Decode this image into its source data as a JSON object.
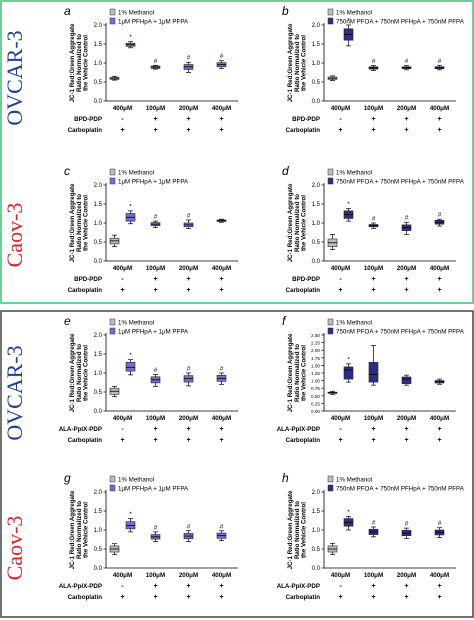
{
  "colors": {
    "top_border": "#3cc173",
    "bottom_border": "#444444",
    "ovcar_text": "#1f3e96",
    "caov_text": "#d9262b",
    "methanol_box": "#bdbdbd",
    "pfhpa_box": "#6f6fd6",
    "pfoa_box": "#2e2d86"
  },
  "groups": [
    {
      "label": "OVCAR-3",
      "color_key": "ovcar_text"
    },
    {
      "label": "Caov-3",
      "color_key": "caov_text"
    },
    {
      "label": "OVCAR-3",
      "color_key": "ovcar_text"
    },
    {
      "label": "Caov-3",
      "color_key": "caov_text"
    }
  ],
  "chart_data": [
    {
      "panel": "a",
      "type": "box",
      "ylabel": "JC-1 Red:Green Aggregate Ratio Normalized to the Vehicle Control",
      "ylim": [
        0,
        2
      ],
      "yticks": [
        "0.0",
        "0.5",
        "1.0",
        "1.5",
        "2.0"
      ],
      "legend": [
        "1% Methanol",
        "1μM PFHpA + 1μM PFPA"
      ],
      "legend_position": "top-left",
      "categories": [
        "400μM",
        "100μM",
        "200μM",
        "400μM"
      ],
      "treatment_rows": [
        {
          "label": "BPD-PDP",
          "marks": [
            "-",
            "+",
            "+",
            "+"
          ]
        },
        {
          "label": "Carboplatin",
          "marks": [
            "+",
            "+",
            "+",
            "+"
          ]
        }
      ],
      "boxes": [
        {
          "series": 0,
          "min": 0.55,
          "q1": 0.57,
          "median": 0.6,
          "q3": 0.62,
          "max": 0.65
        },
        {
          "series": 1,
          "min": 1.4,
          "q1": 1.44,
          "median": 1.48,
          "q3": 1.52,
          "max": 1.56,
          "marker": "*"
        },
        {
          "series": 1,
          "min": 0.84,
          "q1": 0.86,
          "median": 0.89,
          "q3": 0.92,
          "max": 0.94,
          "marker": "#"
        },
        {
          "series": 1,
          "min": 0.75,
          "q1": 0.83,
          "median": 0.9,
          "q3": 0.96,
          "max": 1.02,
          "marker": "#"
        },
        {
          "series": 1,
          "min": 0.86,
          "q1": 0.9,
          "median": 0.96,
          "q3": 1.01,
          "max": 1.06,
          "marker": "#"
        }
      ]
    },
    {
      "panel": "b",
      "type": "box",
      "ylabel": "JC-1 Red:Green Aggregate Ratio Normalized to the Vehicle Control",
      "ylim": [
        0,
        2
      ],
      "yticks": [
        "0.0",
        "0.5",
        "1.0",
        "1.5",
        "2.0"
      ],
      "legend": [
        "1% Methanol",
        "750nM PFOA + 750nM PFHpA + 750nM PFPA"
      ],
      "legend_position": "top-left",
      "categories": [
        "400μM",
        "100μM",
        "200μM",
        "400μM"
      ],
      "treatment_rows": [
        {
          "label": "BPD-PDP",
          "marks": [
            "-",
            "+",
            "+",
            "+"
          ]
        },
        {
          "label": "Carboplatin",
          "marks": [
            "+",
            "+",
            "+",
            "+"
          ]
        }
      ],
      "boxes": [
        {
          "series": 0,
          "min": 0.54,
          "q1": 0.57,
          "median": 0.6,
          "q3": 0.63,
          "max": 0.66
        },
        {
          "series": 2,
          "min": 1.45,
          "q1": 1.6,
          "median": 1.75,
          "q3": 1.9,
          "max": 2.0,
          "marker": "*"
        },
        {
          "series": 2,
          "min": 0.8,
          "q1": 0.84,
          "median": 0.87,
          "q3": 0.9,
          "max": 0.93,
          "marker": "#"
        },
        {
          "series": 2,
          "min": 0.82,
          "q1": 0.85,
          "median": 0.88,
          "q3": 0.9,
          "max": 0.93,
          "marker": "#"
        },
        {
          "series": 2,
          "min": 0.82,
          "q1": 0.85,
          "median": 0.88,
          "q3": 0.9,
          "max": 0.94,
          "marker": "#"
        }
      ]
    },
    {
      "panel": "c",
      "type": "box",
      "ylabel": "JC-1 Red:Green Aggregate Ratio Normalized to the Vehicle Control",
      "ylim": [
        0,
        2
      ],
      "yticks": [
        "0.0",
        "0.5",
        "1.0",
        "1.5",
        "2.0"
      ],
      "legend": [
        "1% Methanol",
        "1μM PFHpA + 1μM PFPA"
      ],
      "legend_position": "top-left",
      "categories": [
        "400μM",
        "100μM",
        "200μM",
        "400μM"
      ],
      "treatment_rows": [
        {
          "label": "BPD-PDP",
          "marks": [
            "-",
            "+",
            "+",
            "+"
          ]
        },
        {
          "label": "Carboplatin",
          "marks": [
            "+",
            "+",
            "+",
            "+"
          ]
        }
      ],
      "boxes": [
        {
          "series": 0,
          "min": 0.38,
          "q1": 0.45,
          "median": 0.53,
          "q3": 0.6,
          "max": 0.68
        },
        {
          "series": 1,
          "min": 0.98,
          "q1": 1.05,
          "median": 1.15,
          "q3": 1.25,
          "max": 1.32,
          "marker": "*"
        },
        {
          "series": 1,
          "min": 0.88,
          "q1": 0.93,
          "median": 0.97,
          "q3": 1.01,
          "max": 1.05,
          "marker": "#"
        },
        {
          "series": 1,
          "min": 0.85,
          "q1": 0.9,
          "median": 0.95,
          "q3": 1.0,
          "max": 1.08,
          "marker": "#"
        },
        {
          "series": 1,
          "min": 1.02,
          "q1": 1.04,
          "median": 1.06,
          "q3": 1.08,
          "max": 1.1
        }
      ]
    },
    {
      "panel": "d",
      "type": "box",
      "ylabel": "JC-1 Red:Green Aggregate Ratio Normalized to the Vehicle Control",
      "ylim": [
        0,
        2
      ],
      "yticks": [
        "0.0",
        "0.5",
        "1.0",
        "1.5",
        "2.0"
      ],
      "legend": [
        "1% Methanol",
        "750nM PFOA + 750nM PFHpA + 750nM PFPA"
      ],
      "legend_position": "top-left",
      "categories": [
        "400μM",
        "100μM",
        "200μM",
        "400μM"
      ],
      "treatment_rows": [
        {
          "label": "BPD-PDP",
          "marks": [
            "-",
            "+",
            "+",
            "+"
          ]
        },
        {
          "label": "Carboplatin",
          "marks": [
            "+",
            "+",
            "+",
            "+"
          ]
        }
      ],
      "boxes": [
        {
          "series": 0,
          "min": 0.3,
          "q1": 0.38,
          "median": 0.48,
          "q3": 0.58,
          "max": 0.7
        },
        {
          "series": 2,
          "min": 1.05,
          "q1": 1.12,
          "median": 1.22,
          "q3": 1.32,
          "max": 1.38,
          "marker": "*"
        },
        {
          "series": 2,
          "min": 0.86,
          "q1": 0.9,
          "median": 0.93,
          "q3": 0.96,
          "max": 1.0,
          "marker": "#"
        },
        {
          "series": 2,
          "min": 0.7,
          "q1": 0.8,
          "median": 0.88,
          "q3": 0.95,
          "max": 1.02,
          "marker": "#"
        },
        {
          "series": 2,
          "min": 0.92,
          "q1": 0.97,
          "median": 1.02,
          "q3": 1.07,
          "max": 1.1,
          "marker": "#"
        }
      ]
    },
    {
      "panel": "e",
      "type": "box",
      "ylabel": "JC-1 Red:Green Aggregate Ratio Normalized to the Vehicle Control",
      "ylim": [
        0,
        2
      ],
      "yticks": [
        "0.0",
        "0.5",
        "1.0",
        "1.5",
        "2.0"
      ],
      "legend": [
        "1% Methanol",
        "1μM PFHpA + 1μM PFPA"
      ],
      "legend_position": "top-left",
      "categories": [
        "400μM",
        "100μM",
        "200μM",
        "400μM"
      ],
      "treatment_rows": [
        {
          "label": "ALA-PpIX-PDP",
          "marks": [
            "-",
            "+",
            "+",
            "+"
          ]
        },
        {
          "label": "Carboplatin",
          "marks": [
            "+",
            "+",
            "+",
            "+"
          ]
        }
      ],
      "boxes": [
        {
          "series": 0,
          "min": 0.38,
          "q1": 0.44,
          "median": 0.52,
          "q3": 0.6,
          "max": 0.65
        },
        {
          "series": 1,
          "min": 0.95,
          "q1": 1.05,
          "median": 1.15,
          "q3": 1.28,
          "max": 1.35,
          "marker": "*"
        },
        {
          "series": 1,
          "min": 0.65,
          "q1": 0.74,
          "median": 0.82,
          "q3": 0.9,
          "max": 0.96,
          "marker": "#"
        },
        {
          "series": 1,
          "min": 0.66,
          "q1": 0.76,
          "median": 0.85,
          "q3": 0.93,
          "max": 1.0,
          "marker": "#"
        },
        {
          "series": 1,
          "min": 0.7,
          "q1": 0.78,
          "median": 0.86,
          "q3": 0.94,
          "max": 1.0,
          "marker": "#"
        }
      ]
    },
    {
      "panel": "f",
      "type": "box",
      "ylabel": "JC-1 Red:Green Aggregate Ratio Normalized to the Vehicle Control",
      "ylim": [
        0,
        2.5
      ],
      "yticks": [
        "0.00",
        "0.25",
        "0.50",
        "0.75",
        "1.00",
        "1.25",
        "1.50",
        "1.75",
        "2.00",
        "2.25",
        "2.50"
      ],
      "legend": [
        "1% Methanol",
        "750nM PFOA + 750nM PFHpA + 750nM PFPA"
      ],
      "legend_position": "top-left",
      "categories": [
        "400μM",
        "100μM",
        "200μM",
        "400μM"
      ],
      "treatment_rows": [
        {
          "label": "ALA-PpIX-PDP",
          "marks": [
            "-",
            "+",
            "+",
            "+"
          ]
        },
        {
          "label": "Carboplatin",
          "marks": [
            "+",
            "+",
            "+",
            "+"
          ]
        }
      ],
      "boxes": [
        {
          "series": 0,
          "min": 0.55,
          "q1": 0.58,
          "median": 0.6,
          "q3": 0.62,
          "max": 0.65
        },
        {
          "series": 2,
          "min": 0.95,
          "q1": 1.05,
          "median": 1.35,
          "q3": 1.45,
          "max": 1.55,
          "marker": "*"
        },
        {
          "series": 2,
          "min": 0.85,
          "q1": 0.95,
          "median": 1.2,
          "q3": 1.6,
          "max": 2.15
        },
        {
          "series": 2,
          "min": 0.85,
          "q1": 0.9,
          "median": 1.05,
          "q3": 1.12,
          "max": 1.18
        },
        {
          "series": 2,
          "min": 0.88,
          "q1": 0.92,
          "median": 0.97,
          "q3": 1.0,
          "max": 1.05
        }
      ]
    },
    {
      "panel": "g",
      "type": "box",
      "ylabel": "JC-1 Red:Green Aggregate Ratio Normalized to the Vehicle Control",
      "ylim": [
        0,
        2
      ],
      "yticks": [
        "0.0",
        "0.5",
        "1.0",
        "1.5",
        "2.0"
      ],
      "legend": [
        "1% Methanol",
        "1μM PFHpA + 1μM PFPA"
      ],
      "legend_position": "top-left",
      "categories": [
        "400μM",
        "100μM",
        "200μM",
        "400μM"
      ],
      "treatment_rows": [
        {
          "label": "ALA-PpIX-PDP",
          "marks": [
            "-",
            "+",
            "+",
            "+"
          ]
        },
        {
          "label": "Carboplatin",
          "marks": [
            "+",
            "+",
            "+",
            "+"
          ]
        }
      ],
      "boxes": [
        {
          "series": 0,
          "min": 0.35,
          "q1": 0.42,
          "median": 0.5,
          "q3": 0.58,
          "max": 0.64
        },
        {
          "series": 1,
          "min": 0.95,
          "q1": 1.03,
          "median": 1.12,
          "q3": 1.22,
          "max": 1.3,
          "marker": "*"
        },
        {
          "series": 1,
          "min": 0.7,
          "q1": 0.76,
          "median": 0.82,
          "q3": 0.88,
          "max": 0.95,
          "marker": "#"
        },
        {
          "series": 1,
          "min": 0.7,
          "q1": 0.77,
          "median": 0.84,
          "q3": 0.91,
          "max": 0.98,
          "marker": "#"
        },
        {
          "series": 1,
          "min": 0.72,
          "q1": 0.78,
          "median": 0.85,
          "q3": 0.92,
          "max": 0.98,
          "marker": "#"
        }
      ]
    },
    {
      "panel": "h",
      "type": "box",
      "ylabel": "JC-1 Red:Green Aggregate Ratio Normalized to the Vehicle Control",
      "ylim": [
        0,
        2
      ],
      "yticks": [
        "0.0",
        "0.5",
        "1.0",
        "1.5",
        "2.0"
      ],
      "legend": [
        "1% Methanol",
        "750nM PFOA + 750nM PFHpA + 750nM PFPA"
      ],
      "legend_position": "top-left",
      "categories": [
        "400μM",
        "100μM",
        "200μM",
        "400μM"
      ],
      "treatment_rows": [
        {
          "label": "ALA-PpIX-PDP",
          "marks": [
            "-",
            "+",
            "+",
            "+"
          ]
        },
        {
          "label": "Carboplatin",
          "marks": [
            "+",
            "+",
            "+",
            "+"
          ]
        }
      ],
      "boxes": [
        {
          "series": 0,
          "min": 0.35,
          "q1": 0.42,
          "median": 0.5,
          "q3": 0.58,
          "max": 0.65
        },
        {
          "series": 2,
          "min": 1.0,
          "q1": 1.1,
          "median": 1.2,
          "q3": 1.3,
          "max": 1.36,
          "marker": "*"
        },
        {
          "series": 2,
          "min": 0.82,
          "q1": 0.88,
          "median": 0.95,
          "q3": 1.02,
          "max": 1.08,
          "marker": "#"
        },
        {
          "series": 2,
          "min": 0.78,
          "q1": 0.85,
          "median": 0.92,
          "q3": 0.99,
          "max": 1.05,
          "marker": "#"
        },
        {
          "series": 2,
          "min": 0.8,
          "q1": 0.87,
          "median": 0.94,
          "q3": 1.0,
          "max": 1.06,
          "marker": "#"
        }
      ]
    }
  ]
}
